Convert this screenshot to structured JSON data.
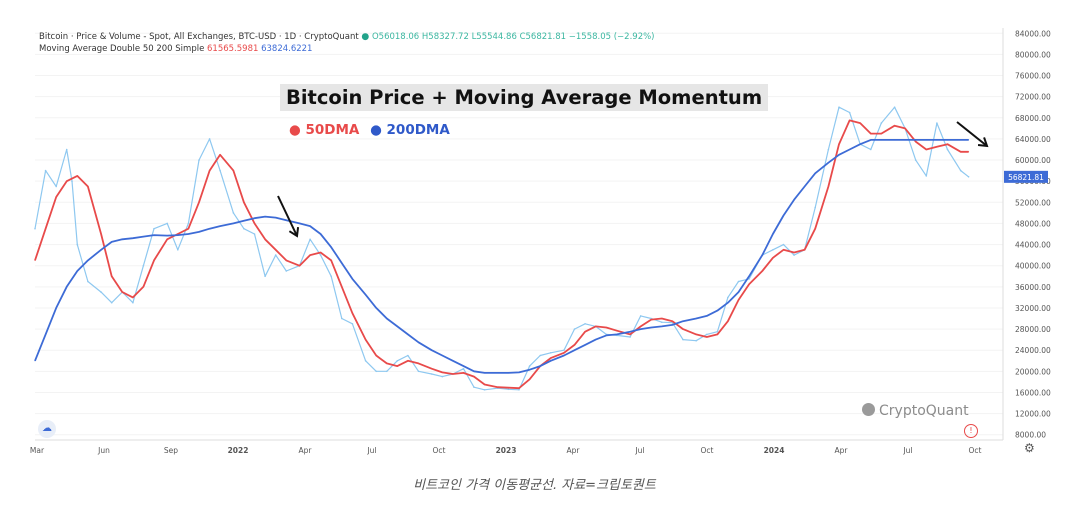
{
  "header": {
    "line1_label": "Bitcoin · Price & Volume - Spot, All Exchanges, BTC-USD · 1D · CryptoQuant",
    "live_dot": "●",
    "ohlc": "O56018.06  H58327.72  L55544.86  C56821.81  −1558.05 (−2.92%)",
    "line2_label": "Moving Average Double 50 200 Simple",
    "ma50_value": "61565.5981",
    "ma200_value": "63824.6221"
  },
  "overlay": {
    "title": "Bitcoin Price + Moving Average Momentum",
    "legend_50": "● 50DMA",
    "legend_200": "● 200DMA"
  },
  "watermark": "CryptoQuant",
  "caption": "비트코인 가격 이동평균선. 자료=크립토퀀트",
  "icons": {
    "cloud": "cloud-icon",
    "alert": "alert-icon",
    "gear": "gear-icon"
  },
  "colors": {
    "price": "#8ec8f0",
    "ma50": "#e84a4a",
    "ma200": "#3d6bd6",
    "current_price_tag": "#3d6bd6"
  },
  "chart_data": {
    "type": "line",
    "title": "Bitcoin Price + Moving Average Momentum",
    "xlabel": "",
    "ylabel": "",
    "ylim": [
      7000,
      85000
    ],
    "x_ticks": [
      "Mar",
      "Jun",
      "Sep",
      "2022",
      "Apr",
      "Jul",
      "Oct",
      "2023",
      "Apr",
      "Jul",
      "Oct",
      "2024",
      "Apr",
      "Jul",
      "Oct"
    ],
    "y_ticks": [
      "84000.00",
      "80000.00",
      "76000.00",
      "72000.00",
      "68000.00",
      "64000.00",
      "60000.00",
      "56000.00",
      "52000.00",
      "48000.00",
      "44000.00",
      "40000.00",
      "36000.00",
      "32000.00",
      "28000.00",
      "24000.00",
      "20000.00",
      "16000.00",
      "12000.00",
      "8000.00"
    ],
    "current_price_label": "56821.81",
    "current_price": 56821.81,
    "x_range": [
      2021.17,
      2024.83
    ],
    "series": [
      {
        "name": "Price",
        "points": [
          [
            2021.17,
            47000
          ],
          [
            2021.21,
            58000
          ],
          [
            2021.25,
            55000
          ],
          [
            2021.29,
            62000
          ],
          [
            2021.31,
            56000
          ],
          [
            2021.33,
            44000
          ],
          [
            2021.37,
            37000
          ],
          [
            2021.42,
            35000
          ],
          [
            2021.46,
            33000
          ],
          [
            2021.5,
            35000
          ],
          [
            2021.54,
            33000
          ],
          [
            2021.58,
            40000
          ],
          [
            2021.62,
            47000
          ],
          [
            2021.67,
            48000
          ],
          [
            2021.71,
            43000
          ],
          [
            2021.75,
            48000
          ],
          [
            2021.79,
            60000
          ],
          [
            2021.83,
            64000
          ],
          [
            2021.87,
            58000
          ],
          [
            2021.92,
            50000
          ],
          [
            2021.96,
            47000
          ],
          [
            2022.0,
            46000
          ],
          [
            2022.04,
            38000
          ],
          [
            2022.08,
            42000
          ],
          [
            2022.12,
            39000
          ],
          [
            2022.17,
            40000
          ],
          [
            2022.21,
            45000
          ],
          [
            2022.25,
            42000
          ],
          [
            2022.29,
            38000
          ],
          [
            2022.33,
            30000
          ],
          [
            2022.37,
            29000
          ],
          [
            2022.42,
            22000
          ],
          [
            2022.46,
            20000
          ],
          [
            2022.5,
            20000
          ],
          [
            2022.54,
            22000
          ],
          [
            2022.58,
            23000
          ],
          [
            2022.62,
            20000
          ],
          [
            2022.67,
            19500
          ],
          [
            2022.71,
            19000
          ],
          [
            2022.75,
            19500
          ],
          [
            2022.79,
            20500
          ],
          [
            2022.83,
            17000
          ],
          [
            2022.87,
            16500
          ],
          [
            2022.92,
            16800
          ],
          [
            2022.96,
            16600
          ],
          [
            2023.0,
            16500
          ],
          [
            2023.04,
            21000
          ],
          [
            2023.08,
            23000
          ],
          [
            2023.12,
            23500
          ],
          [
            2023.17,
            24000
          ],
          [
            2023.21,
            28000
          ],
          [
            2023.25,
            29000
          ],
          [
            2023.29,
            28500
          ],
          [
            2023.33,
            27000
          ],
          [
            2023.37,
            26800
          ],
          [
            2023.42,
            26500
          ],
          [
            2023.46,
            30500
          ],
          [
            2023.5,
            30000
          ],
          [
            2023.54,
            29300
          ],
          [
            2023.58,
            29200
          ],
          [
            2023.62,
            26000
          ],
          [
            2023.67,
            25800
          ],
          [
            2023.71,
            27000
          ],
          [
            2023.75,
            27500
          ],
          [
            2023.79,
            34000
          ],
          [
            2023.83,
            37000
          ],
          [
            2023.87,
            37500
          ],
          [
            2023.92,
            42000
          ],
          [
            2023.96,
            43000
          ],
          [
            2024.0,
            44000
          ],
          [
            2024.04,
            42000
          ],
          [
            2024.08,
            43000
          ],
          [
            2024.12,
            51000
          ],
          [
            2024.17,
            62000
          ],
          [
            2024.21,
            70000
          ],
          [
            2024.25,
            69000
          ],
          [
            2024.29,
            63000
          ],
          [
            2024.33,
            62000
          ],
          [
            2024.37,
            67000
          ],
          [
            2024.42,
            70000
          ],
          [
            2024.46,
            66000
          ],
          [
            2024.5,
            60000
          ],
          [
            2024.54,
            57000
          ],
          [
            2024.58,
            67000
          ],
          [
            2024.62,
            62000
          ],
          [
            2024.67,
            58000
          ],
          [
            2024.7,
            56821
          ]
        ]
      },
      {
        "name": "50DMA",
        "points": [
          [
            2021.17,
            41000
          ],
          [
            2021.21,
            47000
          ],
          [
            2021.25,
            53000
          ],
          [
            2021.29,
            56000
          ],
          [
            2021.33,
            57000
          ],
          [
            2021.37,
            55000
          ],
          [
            2021.42,
            46000
          ],
          [
            2021.46,
            38000
          ],
          [
            2021.5,
            35000
          ],
          [
            2021.54,
            34000
          ],
          [
            2021.58,
            36000
          ],
          [
            2021.62,
            41000
          ],
          [
            2021.67,
            45000
          ],
          [
            2021.71,
            46000
          ],
          [
            2021.75,
            47000
          ],
          [
            2021.79,
            52000
          ],
          [
            2021.83,
            58000
          ],
          [
            2021.87,
            61000
          ],
          [
            2021.92,
            58000
          ],
          [
            2021.96,
            52000
          ],
          [
            2022.0,
            48000
          ],
          [
            2022.04,
            45000
          ],
          [
            2022.08,
            43000
          ],
          [
            2022.12,
            41000
          ],
          [
            2022.17,
            40000
          ],
          [
            2022.21,
            42000
          ],
          [
            2022.25,
            42500
          ],
          [
            2022.29,
            41000
          ],
          [
            2022.33,
            36000
          ],
          [
            2022.37,
            31000
          ],
          [
            2022.42,
            26000
          ],
          [
            2022.46,
            23000
          ],
          [
            2022.5,
            21500
          ],
          [
            2022.54,
            21000
          ],
          [
            2022.58,
            22000
          ],
          [
            2022.62,
            21500
          ],
          [
            2022.67,
            20500
          ],
          [
            2022.71,
            19800
          ],
          [
            2022.75,
            19500
          ],
          [
            2022.79,
            19700
          ],
          [
            2022.83,
            19000
          ],
          [
            2022.87,
            17500
          ],
          [
            2022.92,
            17000
          ],
          [
            2022.96,
            16900
          ],
          [
            2023.0,
            16800
          ],
          [
            2023.04,
            18500
          ],
          [
            2023.08,
            21000
          ],
          [
            2023.12,
            22500
          ],
          [
            2023.17,
            23500
          ],
          [
            2023.21,
            25000
          ],
          [
            2023.25,
            27500
          ],
          [
            2023.29,
            28500
          ],
          [
            2023.33,
            28300
          ],
          [
            2023.37,
            27700
          ],
          [
            2023.42,
            27000
          ],
          [
            2023.46,
            28500
          ],
          [
            2023.5,
            29800
          ],
          [
            2023.54,
            30000
          ],
          [
            2023.58,
            29500
          ],
          [
            2023.62,
            28000
          ],
          [
            2023.67,
            27000
          ],
          [
            2023.71,
            26500
          ],
          [
            2023.75,
            27000
          ],
          [
            2023.79,
            29500
          ],
          [
            2023.83,
            33500
          ],
          [
            2023.87,
            36500
          ],
          [
            2023.92,
            39000
          ],
          [
            2023.96,
            41500
          ],
          [
            2024.0,
            43000
          ],
          [
            2024.04,
            42500
          ],
          [
            2024.08,
            43000
          ],
          [
            2024.12,
            47000
          ],
          [
            2024.17,
            55000
          ],
          [
            2024.21,
            63000
          ],
          [
            2024.25,
            67500
          ],
          [
            2024.29,
            67000
          ],
          [
            2024.33,
            65000
          ],
          [
            2024.37,
            65000
          ],
          [
            2024.42,
            66500
          ],
          [
            2024.46,
            66000
          ],
          [
            2024.5,
            63500
          ],
          [
            2024.54,
            62000
          ],
          [
            2024.58,
            62500
          ],
          [
            2024.62,
            63000
          ],
          [
            2024.67,
            61566
          ],
          [
            2024.7,
            61566
          ]
        ]
      },
      {
        "name": "200DMA",
        "points": [
          [
            2021.17,
            22000
          ],
          [
            2021.21,
            27000
          ],
          [
            2021.25,
            32000
          ],
          [
            2021.29,
            36000
          ],
          [
            2021.33,
            39000
          ],
          [
            2021.37,
            41000
          ],
          [
            2021.42,
            43000
          ],
          [
            2021.46,
            44500
          ],
          [
            2021.5,
            45000
          ],
          [
            2021.54,
            45200
          ],
          [
            2021.58,
            45500
          ],
          [
            2021.62,
            45800
          ],
          [
            2021.67,
            45700
          ],
          [
            2021.71,
            45800
          ],
          [
            2021.75,
            46000
          ],
          [
            2021.79,
            46400
          ],
          [
            2021.83,
            47000
          ],
          [
            2021.87,
            47500
          ],
          [
            2021.92,
            48000
          ],
          [
            2021.96,
            48500
          ],
          [
            2022.0,
            49000
          ],
          [
            2022.04,
            49300
          ],
          [
            2022.08,
            49100
          ],
          [
            2022.12,
            48600
          ],
          [
            2022.17,
            48000
          ],
          [
            2022.21,
            47500
          ],
          [
            2022.25,
            46000
          ],
          [
            2022.29,
            43500
          ],
          [
            2022.33,
            40500
          ],
          [
            2022.37,
            37500
          ],
          [
            2022.42,
            34500
          ],
          [
            2022.46,
            32000
          ],
          [
            2022.5,
            30000
          ],
          [
            2022.54,
            28500
          ],
          [
            2022.58,
            27000
          ],
          [
            2022.62,
            25500
          ],
          [
            2022.67,
            24000
          ],
          [
            2022.71,
            23000
          ],
          [
            2022.75,
            22000
          ],
          [
            2022.79,
            21000
          ],
          [
            2022.83,
            20000
          ],
          [
            2022.87,
            19700
          ],
          [
            2022.92,
            19700
          ],
          [
            2022.96,
            19700
          ],
          [
            2023.0,
            19800
          ],
          [
            2023.04,
            20300
          ],
          [
            2023.08,
            21000
          ],
          [
            2023.12,
            22000
          ],
          [
            2023.17,
            23000
          ],
          [
            2023.21,
            24000
          ],
          [
            2023.25,
            25000
          ],
          [
            2023.29,
            26000
          ],
          [
            2023.33,
            26800
          ],
          [
            2023.37,
            27000
          ],
          [
            2023.42,
            27500
          ],
          [
            2023.46,
            28000
          ],
          [
            2023.5,
            28300
          ],
          [
            2023.54,
            28500
          ],
          [
            2023.58,
            28800
          ],
          [
            2023.62,
            29500
          ],
          [
            2023.67,
            30000
          ],
          [
            2023.71,
            30500
          ],
          [
            2023.75,
            31500
          ],
          [
            2023.79,
            33000
          ],
          [
            2023.83,
            35000
          ],
          [
            2023.87,
            38000
          ],
          [
            2023.92,
            42000
          ],
          [
            2023.96,
            46000
          ],
          [
            2024.0,
            49500
          ],
          [
            2024.04,
            52500
          ],
          [
            2024.08,
            55000
          ],
          [
            2024.12,
            57500
          ],
          [
            2024.17,
            59500
          ],
          [
            2024.21,
            61000
          ],
          [
            2024.25,
            62000
          ],
          [
            2024.29,
            63000
          ],
          [
            2024.33,
            63824
          ],
          [
            2024.37,
            63824
          ],
          [
            2024.42,
            63824
          ],
          [
            2024.46,
            63824
          ],
          [
            2024.5,
            63824
          ],
          [
            2024.54,
            63824
          ],
          [
            2024.58,
            63824
          ],
          [
            2024.62,
            63824
          ],
          [
            2024.67,
            63824
          ],
          [
            2024.7,
            63824
          ]
        ]
      }
    ],
    "annotations": [
      "arrow near 2022 Feb peak",
      "arrow near 2024 Sep crossover"
    ]
  }
}
